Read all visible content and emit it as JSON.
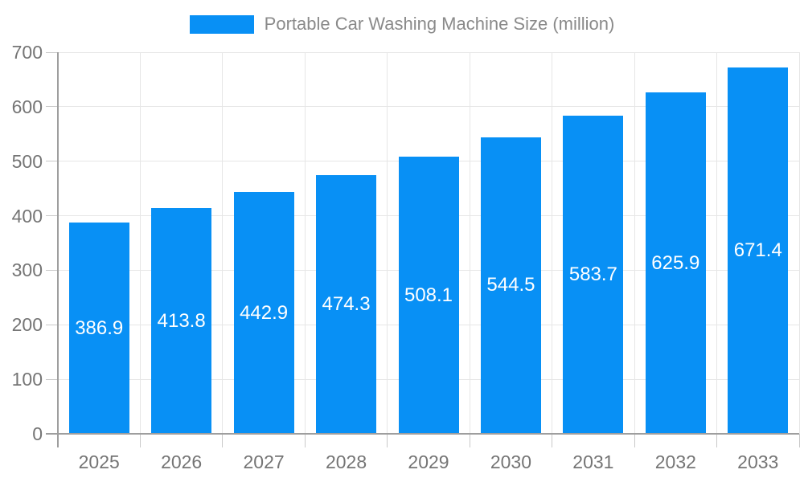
{
  "chart_data": {
    "type": "bar",
    "title": "Portable Car Washing Machine Size (million)",
    "legend": "Portable Car Washing Machine Size (million)",
    "categories": [
      "2025",
      "2026",
      "2027",
      "2028",
      "2029",
      "2030",
      "2031",
      "2032",
      "2033"
    ],
    "values": [
      386.9,
      413.8,
      442.9,
      474.3,
      508.1,
      544.5,
      583.7,
      625.9,
      671.4
    ],
    "xlabel": "",
    "ylabel": "",
    "ylim": [
      0,
      700
    ],
    "yticks": [
      0,
      100,
      200,
      300,
      400,
      500,
      600,
      700
    ],
    "grid": true,
    "legend_position": "top-center",
    "colors": {
      "bar": "#0890f5",
      "bar_label": "#ffffff",
      "axis_text": "#757575",
      "legend_text": "#8a8a8a",
      "grid_line": "#e6e6e6",
      "axis_line": "#9e9e9e",
      "tick_line": "#c9c9c9",
      "background": "#ffffff"
    }
  }
}
